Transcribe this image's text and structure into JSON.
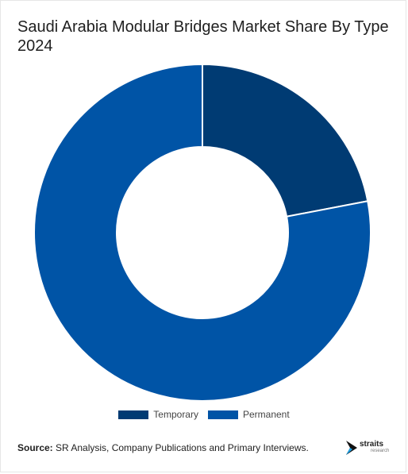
{
  "chart_data": {
    "type": "pie",
    "donut": true,
    "title": "Saudi Arabia Modular Bridges Market Share By Type 2024",
    "categories": [
      "Temporary",
      "Permanent"
    ],
    "values": [
      22,
      78
    ],
    "colors": [
      "#003b73",
      "#0054a6"
    ],
    "legend_position": "bottom"
  },
  "footer": {
    "source_label": "Source:",
    "source_text": " SR Analysis, Company Publications and Primary Interviews."
  },
  "logo": {
    "name": "straits",
    "tagline": "research",
    "icon": "straits-logo-icon"
  }
}
